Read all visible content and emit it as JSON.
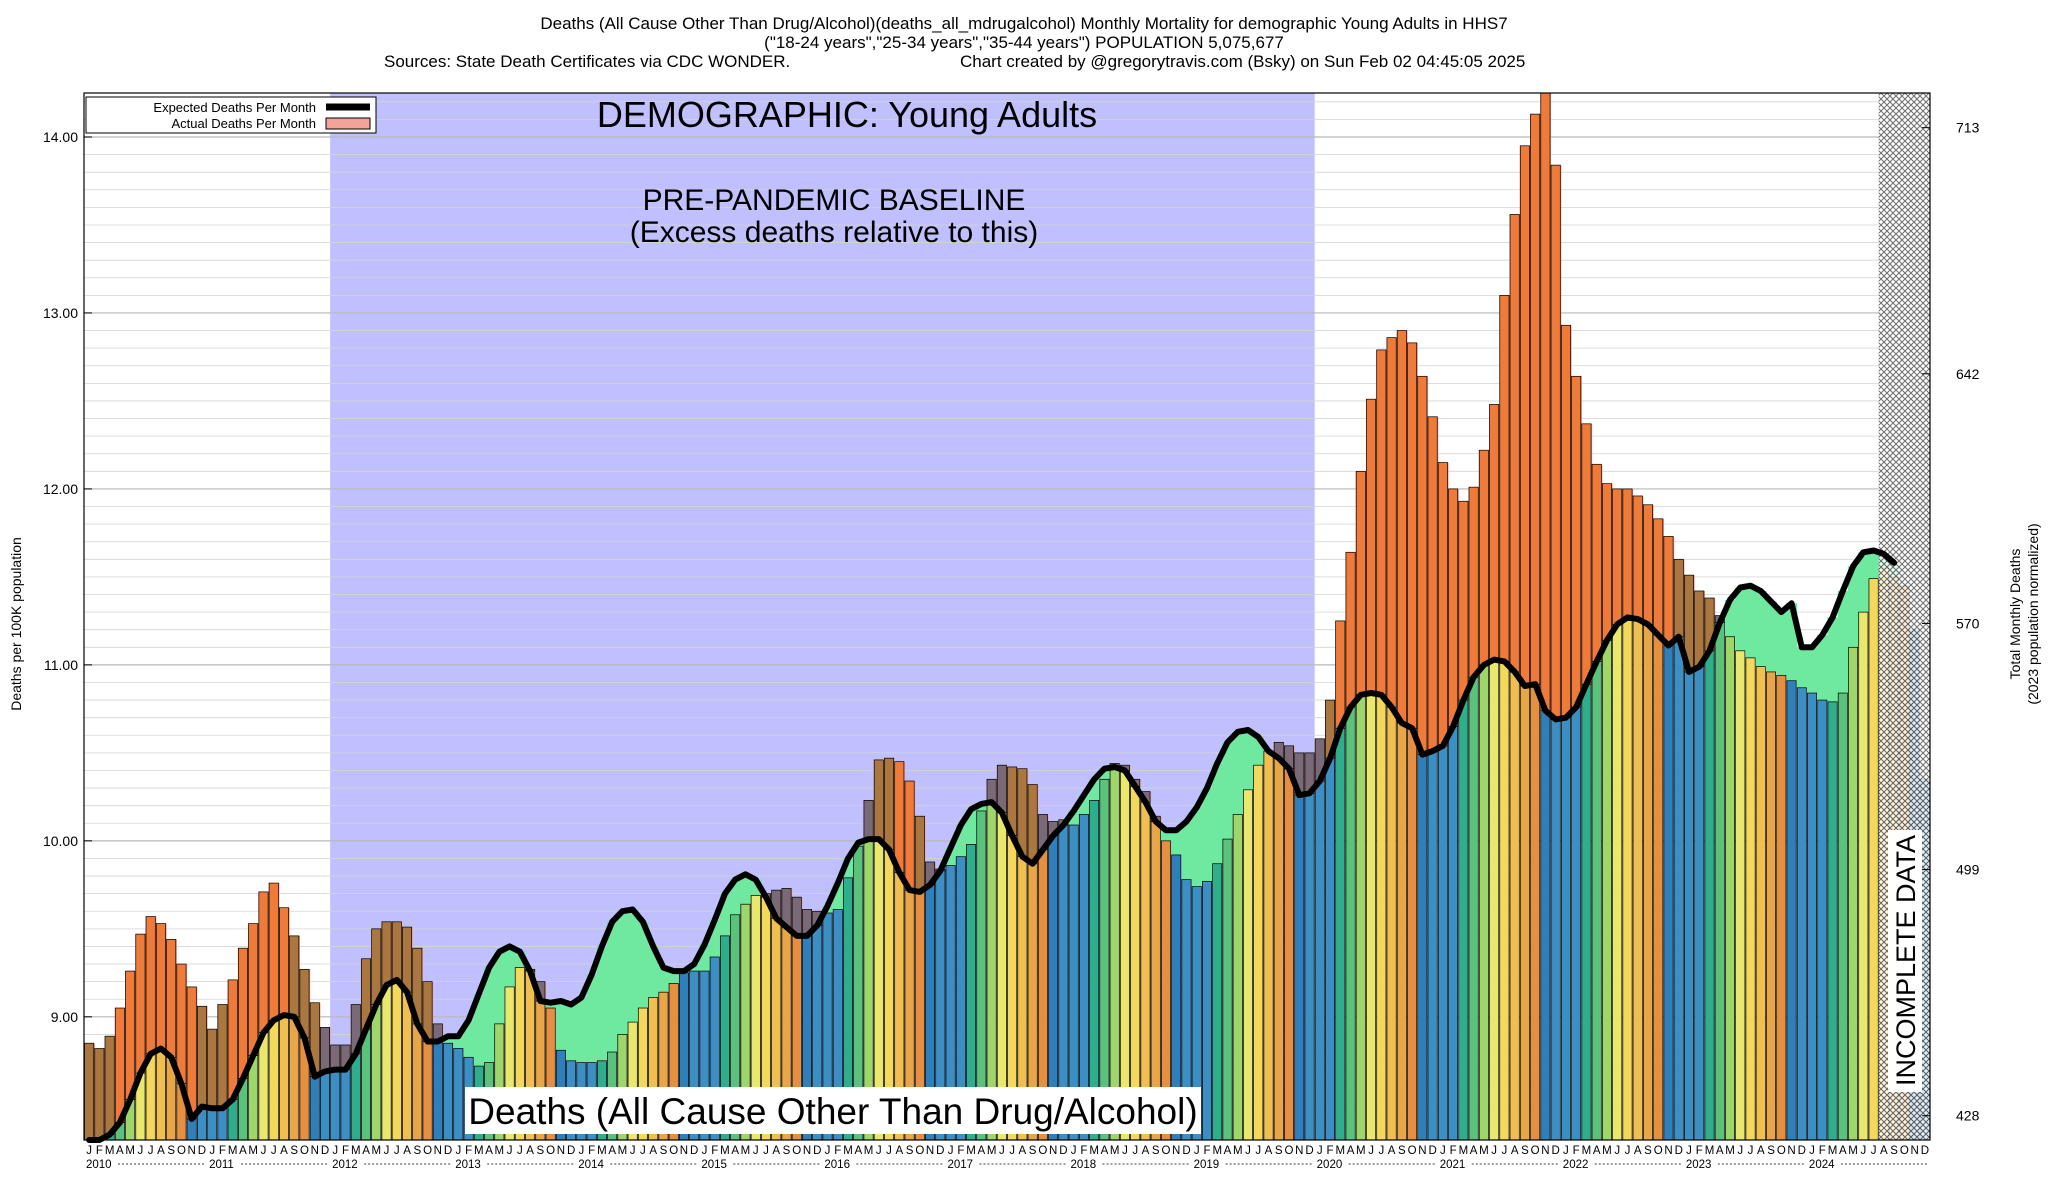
{
  "header": {
    "line1": "Deaths (All Cause Other Than Drug/Alcohol)(deaths_all_mdrugalcohol) Monthly Mortality for demographic Young Adults in HHS7",
    "line2": "(\"18-24 years\",\"25-34 years\",\"35-44 years\") POPULATION 5,075,677",
    "line3_left": "Sources: State Death Certificates via CDC WONDER.",
    "line3_right": "Chart created by @gregorytravis.com (Bsky) on Sun Feb 02 04:45:05 2025"
  },
  "annotations": {
    "demographic": "DEMOGRAPHIC: Young Adults",
    "baseline_line1": "PRE-PANDEMIC BASELINE",
    "baseline_line2": "(Excess deaths relative to this)",
    "metric": "Deaths (All Cause Other Than Drug/Alcohol)",
    "incomplete": "INCOMPLETE DATA"
  },
  "legend": {
    "expected": "Expected Deaths Per Month",
    "actual": "Actual Deaths Per Month"
  },
  "axes": {
    "y_left_label": "Deaths per 100K population",
    "y_right_label_1": "Total Monthly Deaths",
    "y_right_label_2": "(2023 population normalized)",
    "y_left_ticks": [
      "9.00",
      "10.00",
      "11.00",
      "12.00",
      "13.00",
      "14.00"
    ],
    "y_right_ticks": [
      "428",
      "499",
      "570",
      "642",
      "713"
    ],
    "month_letters": [
      "J",
      "F",
      "M",
      "A",
      "M",
      "J",
      "J",
      "A",
      "S",
      "O",
      "N",
      "D"
    ]
  },
  "colors": {
    "baseline_band": "#c0c0ff",
    "expected_line": "#000000",
    "excess_fill": "#f4a29a",
    "deficit_fill": "#6fe8a0",
    "bar_cycle": [
      "#3c8fc2",
      "#3c8fc2",
      "#2fae8c",
      "#5ac27a",
      "#9ed66a",
      "#eae86c",
      "#f3d85c",
      "#f0bf50",
      "#e9a646",
      "#e58f40",
      "#2e7fba",
      "#3c8fc2"
    ]
  },
  "chart_data": {
    "type": "bar",
    "x_start": "2010-01",
    "x_end": "2024-10",
    "baseline_period": [
      "2012-01",
      "2019-12"
    ],
    "incomplete_period": [
      "2024-08",
      "2024-10"
    ],
    "ylim": [
      8.3,
      14.25
    ],
    "y_right_lim": [
      421,
      723
    ],
    "years": [
      "2010",
      "2011",
      "2012",
      "2013",
      "2014",
      "2015",
      "2016",
      "2017",
      "2018",
      "2019",
      "2020",
      "2021",
      "2022",
      "2023",
      "2024"
    ],
    "series": [
      {
        "name": "Actual Deaths Per Month",
        "values": [
          8.85,
          8.82,
          8.89,
          9.05,
          9.26,
          9.47,
          9.57,
          9.53,
          9.44,
          9.3,
          9.17,
          9.06,
          8.93,
          9.07,
          9.21,
          9.39,
          9.53,
          9.71,
          9.76,
          9.62,
          9.46,
          9.27,
          9.08,
          8.94,
          8.84,
          8.84,
          9.07,
          9.33,
          9.5,
          9.54,
          9.54,
          9.51,
          9.39,
          9.2,
          8.96,
          8.85,
          8.82,
          8.77,
          8.72,
          8.74,
          8.96,
          9.17,
          9.28,
          9.27,
          9.2,
          9.05,
          8.81,
          8.75,
          8.74,
          8.74,
          8.75,
          8.8,
          8.9,
          8.97,
          9.05,
          9.11,
          9.14,
          9.19,
          9.25,
          9.26,
          9.26,
          9.34,
          9.46,
          9.58,
          9.64,
          9.69,
          9.7,
          9.72,
          9.73,
          9.68,
          9.61,
          9.6,
          9.59,
          9.61,
          9.79,
          9.97,
          10.23,
          10.46,
          10.47,
          10.45,
          10.34,
          10.14,
          9.88,
          9.84,
          9.86,
          9.91,
          9.98,
          10.17,
          10.35,
          10.43,
          10.42,
          10.41,
          10.32,
          10.15,
          10.11,
          10.12,
          10.09,
          10.15,
          10.23,
          10.35,
          10.44,
          10.43,
          10.35,
          10.28,
          10.14,
          10.0,
          9.92,
          9.78,
          9.74,
          9.77,
          9.87,
          10.01,
          10.15,
          10.29,
          10.43,
          10.51,
          10.56,
          10.54,
          10.5,
          10.5,
          10.58,
          10.8,
          11.25,
          11.64,
          12.1,
          12.51,
          12.79,
          12.86,
          12.9,
          12.83,
          12.64,
          12.41,
          12.15,
          12.0,
          11.93,
          12.01,
          12.22,
          12.48,
          13.1,
          13.56,
          13.95,
          14.13,
          14.25,
          13.84,
          12.93,
          12.64,
          12.37,
          12.14,
          12.03,
          12.0,
          12.0,
          11.96,
          11.91,
          11.83,
          11.73,
          11.6,
          11.51,
          11.42,
          11.38,
          11.28,
          11.16,
          11.08,
          11.04,
          10.99,
          10.96,
          10.94,
          10.91,
          10.87,
          10.84,
          10.8,
          10.79,
          10.84,
          11.1,
          11.3,
          11.49,
          11.55,
          11.5,
          11.45,
          11.2,
          10.35
        ]
      },
      {
        "name": "Expected Deaths Per Month",
        "values": [
          8.3,
          8.3,
          8.33,
          8.4,
          8.53,
          8.68,
          8.79,
          8.82,
          8.77,
          8.62,
          8.42,
          8.49,
          8.48,
          8.48,
          8.53,
          8.65,
          8.78,
          8.91,
          8.98,
          9.01,
          9.0,
          8.88,
          8.66,
          8.69,
          8.7,
          8.7,
          8.79,
          8.93,
          9.07,
          9.18,
          9.21,
          9.14,
          8.96,
          8.86,
          8.86,
          8.89,
          8.89,
          8.98,
          9.13,
          9.28,
          9.37,
          9.4,
          9.37,
          9.26,
          9.09,
          9.08,
          9.09,
          9.07,
          9.11,
          9.24,
          9.4,
          9.54,
          9.6,
          9.61,
          9.54,
          9.4,
          9.28,
          9.26,
          9.26,
          9.3,
          9.41,
          9.55,
          9.7,
          9.78,
          9.81,
          9.78,
          9.68,
          9.56,
          9.51,
          9.46,
          9.46,
          9.52,
          9.63,
          9.76,
          9.9,
          9.99,
          10.01,
          10.01,
          9.95,
          9.82,
          9.72,
          9.71,
          9.75,
          9.83,
          9.96,
          10.09,
          10.18,
          10.21,
          10.22,
          10.16,
          10.03,
          9.91,
          9.87,
          9.95,
          10.03,
          10.09,
          10.17,
          10.26,
          10.35,
          10.41,
          10.42,
          10.4,
          10.31,
          10.22,
          10.11,
          10.06,
          10.06,
          10.11,
          10.19,
          10.3,
          10.44,
          10.56,
          10.62,
          10.63,
          10.59,
          10.51,
          10.47,
          10.41,
          10.26,
          10.27,
          10.34,
          10.47,
          10.64,
          10.76,
          10.83,
          10.84,
          10.83,
          10.76,
          10.67,
          10.64,
          10.49,
          10.51,
          10.54,
          10.65,
          10.8,
          10.93,
          11.0,
          11.03,
          11.02,
          10.96,
          10.88,
          10.89,
          10.74,
          10.69,
          10.7,
          10.76,
          10.89,
          11.02,
          11.14,
          11.23,
          11.27,
          11.26,
          11.23,
          11.17,
          11.11,
          11.16,
          10.96,
          10.99,
          11.08,
          11.24,
          11.37,
          11.44,
          11.45,
          11.42,
          11.36,
          11.3,
          11.35,
          11.1,
          11.1,
          11.17,
          11.27,
          11.42,
          11.56,
          11.64,
          11.65,
          11.63,
          11.58
        ]
      }
    ],
    "grid": true,
    "legend_position": "top-left"
  }
}
